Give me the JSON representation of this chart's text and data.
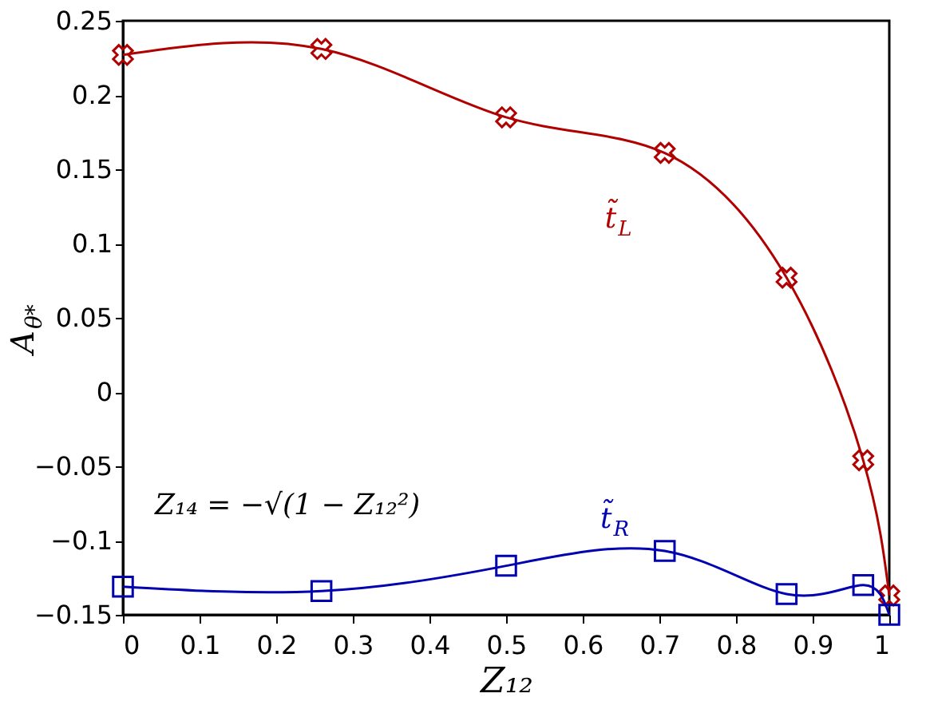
{
  "chart_data": {
    "type": "line",
    "xlabel": "Z₁₂",
    "ylabel": "A$_{θ*}$",
    "x": [
      0,
      0.259,
      0.5,
      0.707,
      0.866,
      0.966,
      1
    ],
    "series": [
      {
        "name": "t̃$_{L}$",
        "color": "#b00000",
        "marker": "cross",
        "values": [
          0.227,
          0.231,
          0.185,
          0.161,
          0.077,
          -0.046,
          -0.137
        ]
      },
      {
        "name": "t̃$_{R}$",
        "color": "#0000b0",
        "marker": "square",
        "values": [
          -0.131,
          -0.134,
          -0.117,
          -0.107,
          -0.136,
          -0.13,
          -0.15
        ]
      }
    ],
    "annotations": [
      "Z₁₄ = −√(1 − Z₁₂²)"
    ],
    "xlim": [
      0,
      1
    ],
    "xticks": [
      0,
      0.1,
      0.2,
      0.3,
      0.4,
      0.5,
      0.6,
      0.7,
      0.8,
      0.9,
      1
    ],
    "ylim": [
      -0.15,
      0.25
    ],
    "yticks": [
      -0.15,
      -0.1,
      -0.05,
      0,
      0.05,
      0.1,
      0.15,
      0.2,
      0.25
    ],
    "grid": false,
    "line_style": "solid"
  }
}
